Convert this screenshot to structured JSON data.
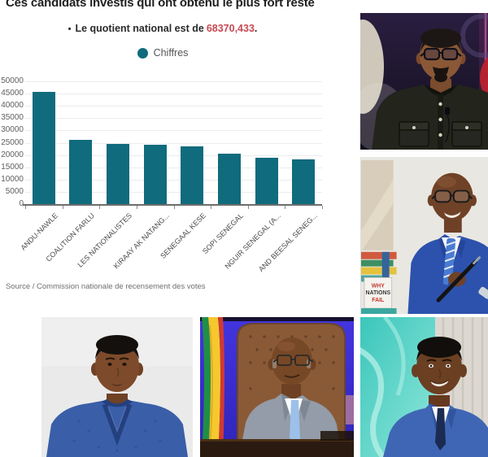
{
  "chart": {
    "title": "Ces candidats investis qui ont obtenu le plus fort reste",
    "subtitle_bullet": "•",
    "subtitle_prefix": "Le quotient national est de",
    "subtitle_value": "68370,433",
    "subtitle_suffix": ".",
    "legend_label": "Chiffres",
    "source": "Source / Commission nationale de recensement des votes",
    "accent_color": "#106B7D",
    "value_color": "#C84A55"
  },
  "chart_data": {
    "type": "bar",
    "title": "Ces candidats investis qui ont obtenu le plus fort reste",
    "subtitle": "Le quotient national est de 68370,433.",
    "legend": [
      "Chiffres"
    ],
    "legend_position": "top-center",
    "categories": [
      "ANDU-NAWLE",
      "COALITION FARLU",
      "LES NATIONALISTES",
      "KIRAAY AK NATANG...",
      "SENEGAAL KESE",
      "SOPI SENEGAL",
      "NGUIR SENEGAL (A...",
      "AND BEESAL SENEG..."
    ],
    "values": [
      45800,
      26100,
      24500,
      24100,
      23400,
      20600,
      19000,
      18300
    ],
    "xlabel": "",
    "ylabel": "",
    "ylim": [
      0,
      50000
    ],
    "yticks": [
      0,
      5000,
      10000,
      15000,
      20000,
      25000,
      30000,
      35000,
      40000,
      45000,
      50000
    ],
    "grid": true,
    "bar_color": "#106B7D",
    "source": "Source / Commission nationale de recensement des votes"
  },
  "photos": {
    "top_right": {
      "description": "Guest with glasses and goatee in dark button-up jacket, TV studio with red circle and pink lights"
    },
    "middle_right": {
      "description": "Bald man with glasses in blue suit and striped tie holding a pen in front of a bookshelf",
      "book_lines": [
        "WHY",
        "NATIONS",
        "FAIL"
      ]
    },
    "bottom_left": {
      "description": "Young man in embroidered blue boubou, light studio portrait"
    },
    "bottom_middle": {
      "description": "Bald man with glasses in gray suit and light blue tie seated in brown chair, Senegal flag and blue wall"
    },
    "bottom_right": {
      "description": "Smiling man in blue suit and dark tie, teal marble panel and striped wall"
    }
  }
}
